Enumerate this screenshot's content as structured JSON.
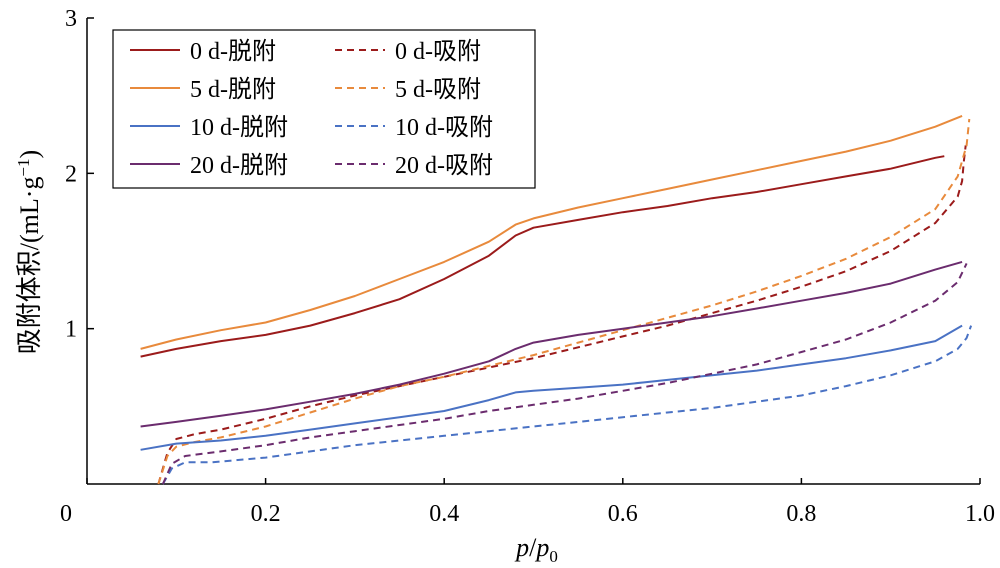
{
  "chart_data": {
    "type": "line",
    "xlabel_parts": {
      "p": "p",
      "slash": "/",
      "p0_main": "p",
      "p0_sub": "0"
    },
    "ylabel_parts": {
      "main": "吸附体积/(mL·g",
      "sup": "−1",
      "close": ")"
    },
    "xlim": [
      0,
      1.0
    ],
    "ylim": [
      0,
      3
    ],
    "x_ticks": [
      {
        "value": 0,
        "label": "0"
      },
      {
        "value": 0.2,
        "label": "0.2"
      },
      {
        "value": 0.4,
        "label": "0.4"
      },
      {
        "value": 0.6,
        "label": "0.6"
      },
      {
        "value": 0.8,
        "label": "0.8"
      },
      {
        "value": 1.0,
        "label": "1.0"
      }
    ],
    "y_ticks": [
      {
        "value": 1,
        "label": "1"
      },
      {
        "value": 2,
        "label": "2"
      },
      {
        "value": 3,
        "label": "3"
      }
    ],
    "grid": false,
    "legend_position": "top-left",
    "colors": {
      "d0": "#9B1B1B",
      "d5": "#E88A3C",
      "d10": "#4A72C4",
      "d20": "#6B2C6E"
    },
    "series": [
      {
        "name": "0 d-脱附",
        "color": "#9B1B1B",
        "dash": false,
        "points": [
          [
            0.06,
            0.82
          ],
          [
            0.1,
            0.87
          ],
          [
            0.15,
            0.92
          ],
          [
            0.2,
            0.96
          ],
          [
            0.25,
            1.02
          ],
          [
            0.3,
            1.1
          ],
          [
            0.35,
            1.19
          ],
          [
            0.4,
            1.32
          ],
          [
            0.45,
            1.47
          ],
          [
            0.48,
            1.6
          ],
          [
            0.5,
            1.65
          ],
          [
            0.55,
            1.7
          ],
          [
            0.6,
            1.75
          ],
          [
            0.65,
            1.79
          ],
          [
            0.7,
            1.84
          ],
          [
            0.75,
            1.88
          ],
          [
            0.8,
            1.93
          ],
          [
            0.85,
            1.98
          ],
          [
            0.9,
            2.03
          ],
          [
            0.95,
            2.1
          ],
          [
            0.96,
            2.11
          ]
        ]
      },
      {
        "name": "0 d-吸附",
        "color": "#9B1B1B",
        "dash": true,
        "points": [
          [
            0.08,
            0.0
          ],
          [
            0.09,
            0.2
          ],
          [
            0.1,
            0.29
          ],
          [
            0.12,
            0.32
          ],
          [
            0.15,
            0.35
          ],
          [
            0.2,
            0.42
          ],
          [
            0.25,
            0.5
          ],
          [
            0.3,
            0.57
          ],
          [
            0.35,
            0.63
          ],
          [
            0.4,
            0.69
          ],
          [
            0.45,
            0.75
          ],
          [
            0.5,
            0.81
          ],
          [
            0.55,
            0.88
          ],
          [
            0.6,
            0.95
          ],
          [
            0.65,
            1.02
          ],
          [
            0.7,
            1.1
          ],
          [
            0.75,
            1.18
          ],
          [
            0.8,
            1.27
          ],
          [
            0.85,
            1.37
          ],
          [
            0.9,
            1.5
          ],
          [
            0.95,
            1.68
          ],
          [
            0.975,
            1.85
          ],
          [
            0.98,
            1.95
          ],
          [
            0.982,
            2.08
          ],
          [
            0.984,
            2.18
          ]
        ]
      },
      {
        "name": "5 d-脱附",
        "color": "#E88A3C",
        "dash": false,
        "points": [
          [
            0.06,
            0.87
          ],
          [
            0.1,
            0.93
          ],
          [
            0.15,
            0.99
          ],
          [
            0.2,
            1.04
          ],
          [
            0.25,
            1.12
          ],
          [
            0.3,
            1.21
          ],
          [
            0.35,
            1.32
          ],
          [
            0.4,
            1.43
          ],
          [
            0.45,
            1.56
          ],
          [
            0.48,
            1.67
          ],
          [
            0.5,
            1.71
          ],
          [
            0.55,
            1.78
          ],
          [
            0.6,
            1.84
          ],
          [
            0.65,
            1.9
          ],
          [
            0.7,
            1.96
          ],
          [
            0.75,
            2.02
          ],
          [
            0.8,
            2.08
          ],
          [
            0.85,
            2.14
          ],
          [
            0.9,
            2.21
          ],
          [
            0.95,
            2.3
          ],
          [
            0.98,
            2.37
          ]
        ]
      },
      {
        "name": "5 d-吸附",
        "color": "#E88A3C",
        "dash": true,
        "points": [
          [
            0.08,
            0.0
          ],
          [
            0.09,
            0.18
          ],
          [
            0.1,
            0.24
          ],
          [
            0.12,
            0.27
          ],
          [
            0.15,
            0.3
          ],
          [
            0.2,
            0.37
          ],
          [
            0.25,
            0.46
          ],
          [
            0.3,
            0.55
          ],
          [
            0.35,
            0.63
          ],
          [
            0.4,
            0.69
          ],
          [
            0.45,
            0.76
          ],
          [
            0.5,
            0.83
          ],
          [
            0.55,
            0.91
          ],
          [
            0.6,
            0.99
          ],
          [
            0.65,
            1.07
          ],
          [
            0.7,
            1.15
          ],
          [
            0.75,
            1.24
          ],
          [
            0.8,
            1.34
          ],
          [
            0.85,
            1.45
          ],
          [
            0.9,
            1.59
          ],
          [
            0.95,
            1.77
          ],
          [
            0.975,
            1.98
          ],
          [
            0.985,
            2.18
          ],
          [
            0.988,
            2.35
          ]
        ]
      },
      {
        "name": "10 d-脱附",
        "color": "#4A72C4",
        "dash": false,
        "points": [
          [
            0.06,
            0.22
          ],
          [
            0.1,
            0.26
          ],
          [
            0.15,
            0.28
          ],
          [
            0.2,
            0.31
          ],
          [
            0.25,
            0.35
          ],
          [
            0.3,
            0.39
          ],
          [
            0.35,
            0.43
          ],
          [
            0.4,
            0.47
          ],
          [
            0.45,
            0.54
          ],
          [
            0.48,
            0.59
          ],
          [
            0.5,
            0.6
          ],
          [
            0.55,
            0.62
          ],
          [
            0.6,
            0.64
          ],
          [
            0.65,
            0.67
          ],
          [
            0.7,
            0.7
          ],
          [
            0.75,
            0.73
          ],
          [
            0.8,
            0.77
          ],
          [
            0.85,
            0.81
          ],
          [
            0.9,
            0.86
          ],
          [
            0.95,
            0.92
          ],
          [
            0.98,
            1.02
          ]
        ]
      },
      {
        "name": "10 d-吸附",
        "color": "#4A72C4",
        "dash": true,
        "points": [
          [
            0.085,
            0.0
          ],
          [
            0.095,
            0.1
          ],
          [
            0.11,
            0.14
          ],
          [
            0.14,
            0.14
          ],
          [
            0.2,
            0.17
          ],
          [
            0.25,
            0.21
          ],
          [
            0.3,
            0.25
          ],
          [
            0.35,
            0.28
          ],
          [
            0.4,
            0.31
          ],
          [
            0.45,
            0.34
          ],
          [
            0.5,
            0.37
          ],
          [
            0.55,
            0.4
          ],
          [
            0.6,
            0.43
          ],
          [
            0.65,
            0.46
          ],
          [
            0.7,
            0.49
          ],
          [
            0.75,
            0.53
          ],
          [
            0.8,
            0.57
          ],
          [
            0.85,
            0.63
          ],
          [
            0.9,
            0.7
          ],
          [
            0.95,
            0.79
          ],
          [
            0.975,
            0.87
          ],
          [
            0.985,
            0.94
          ],
          [
            0.99,
            1.02
          ]
        ]
      },
      {
        "name": "20 d-脱附",
        "color": "#6B2C6E",
        "dash": false,
        "points": [
          [
            0.06,
            0.37
          ],
          [
            0.1,
            0.4
          ],
          [
            0.15,
            0.44
          ],
          [
            0.2,
            0.48
          ],
          [
            0.25,
            0.53
          ],
          [
            0.3,
            0.58
          ],
          [
            0.35,
            0.64
          ],
          [
            0.4,
            0.71
          ],
          [
            0.45,
            0.79
          ],
          [
            0.48,
            0.87
          ],
          [
            0.5,
            0.91
          ],
          [
            0.55,
            0.96
          ],
          [
            0.6,
            1.0
          ],
          [
            0.65,
            1.04
          ],
          [
            0.7,
            1.08
          ],
          [
            0.75,
            1.13
          ],
          [
            0.8,
            1.18
          ],
          [
            0.85,
            1.23
          ],
          [
            0.9,
            1.29
          ],
          [
            0.95,
            1.38
          ],
          [
            0.98,
            1.43
          ]
        ]
      },
      {
        "name": "20 d-吸附",
        "color": "#6B2C6E",
        "dash": true,
        "points": [
          [
            0.085,
            0.0
          ],
          [
            0.095,
            0.13
          ],
          [
            0.11,
            0.18
          ],
          [
            0.15,
            0.21
          ],
          [
            0.2,
            0.25
          ],
          [
            0.25,
            0.3
          ],
          [
            0.3,
            0.34
          ],
          [
            0.35,
            0.38
          ],
          [
            0.4,
            0.42
          ],
          [
            0.45,
            0.47
          ],
          [
            0.5,
            0.51
          ],
          [
            0.55,
            0.55
          ],
          [
            0.6,
            0.6
          ],
          [
            0.65,
            0.65
          ],
          [
            0.7,
            0.71
          ],
          [
            0.75,
            0.77
          ],
          [
            0.8,
            0.85
          ],
          [
            0.85,
            0.93
          ],
          [
            0.9,
            1.04
          ],
          [
            0.95,
            1.18
          ],
          [
            0.975,
            1.3
          ],
          [
            0.985,
            1.42
          ]
        ]
      }
    ]
  }
}
